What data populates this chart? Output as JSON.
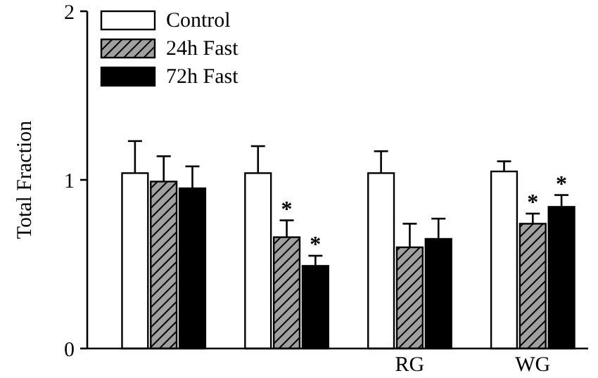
{
  "chart_data": {
    "type": "bar",
    "ylabel": "Total Fraction",
    "categories": [
      null,
      null,
      "RG",
      "WG"
    ],
    "series": [
      {
        "name": "Control",
        "color": "#ffffff",
        "values": [
          1.04,
          1.04,
          1.04,
          1.05
        ],
        "errors": [
          0.19,
          0.16,
          0.13,
          0.06
        ]
      },
      {
        "name": "24h Fast",
        "color": "#a0a0a0",
        "values": [
          0.99,
          0.66,
          0.6,
          0.74
        ],
        "errors": [
          0.15,
          0.1,
          0.14,
          0.06
        ],
        "value_labels": [
          null,
          "*",
          null,
          "*"
        ]
      },
      {
        "name": "72h Fast",
        "color": "#000000",
        "values": [
          0.95,
          0.49,
          0.65,
          0.84
        ],
        "errors": [
          0.13,
          0.06,
          0.12,
          0.07
        ],
        "value_labels": [
          null,
          "*",
          null,
          "*"
        ]
      }
    ],
    "ylim": [
      0,
      2
    ],
    "yticks": [
      0,
      1,
      2
    ],
    "grid": false,
    "legend": "top left"
  }
}
